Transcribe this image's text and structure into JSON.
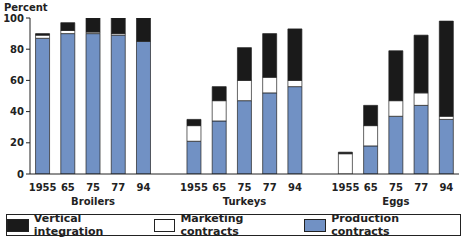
{
  "chart_data": {
    "type": "bar",
    "stacked": true,
    "y_label": "Percent",
    "categories": [
      "1955",
      "65",
      "75",
      "77",
      "94",
      null,
      "1955",
      "65",
      "75",
      "77",
      "94",
      null,
      "1955",
      "65",
      "75",
      "77",
      "94"
    ],
    "group_labels": [
      "Broilers",
      "Turkeys",
      "Eggs"
    ],
    "series": [
      {
        "name": "Production contracts",
        "color": "#7191c4",
        "values": [
          87,
          90,
          90,
          89,
          85,
          null,
          21,
          34,
          47,
          52,
          56,
          null,
          0,
          18,
          37,
          44,
          35
        ]
      },
      {
        "name": "Marketing contracts",
        "color": "#ffffff",
        "values": [
          2,
          2,
          1,
          1,
          0,
          null,
          10,
          13,
          13,
          10,
          4,
          null,
          13,
          13,
          10,
          8,
          2
        ]
      },
      {
        "name": "Vertical integration",
        "color": "#1a1a1a",
        "values": [
          1,
          5,
          9,
          10,
          15,
          null,
          4,
          9,
          21,
          28,
          33,
          null,
          1,
          13,
          32,
          37,
          61
        ]
      }
    ],
    "ylim": [
      0,
      100
    ],
    "yticks": [
      0,
      20,
      40,
      60,
      80,
      100
    ],
    "grid": false
  }
}
